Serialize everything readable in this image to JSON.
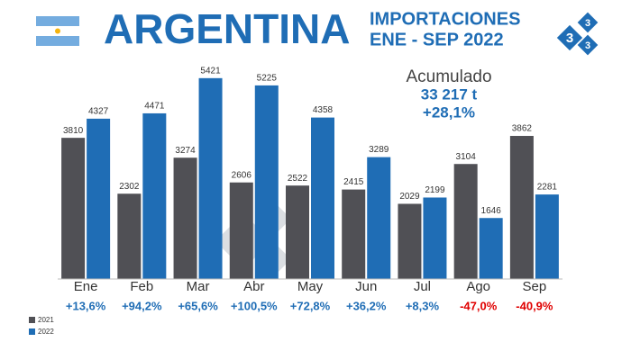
{
  "chart_data": {
    "type": "bar",
    "title": "ARGENTINA",
    "subtitle": [
      "IMPORTACIONES",
      "ENE - SEP 2022"
    ],
    "annotations": [
      "Acumulado",
      "33 217 t",
      "+28,1%"
    ],
    "logo_text": [
      "3",
      "3",
      "3"
    ],
    "categories": [
      "Ene",
      "Feb",
      "Mar",
      "Abr",
      "May",
      "Jun",
      "Jul",
      "Ago",
      "Sep"
    ],
    "series": [
      {
        "name": "2021",
        "color": "#505055",
        "values": [
          3810,
          2302,
          3274,
          2606,
          2522,
          2415,
          2029,
          3104,
          3862
        ]
      },
      {
        "name": "2022",
        "color": "#1f6db5",
        "values": [
          4327,
          4471,
          5421,
          5225,
          4358,
          3289,
          2199,
          1646,
          2281
        ]
      }
    ],
    "changes": [
      {
        "value": 13.6,
        "label": "+13,6%"
      },
      {
        "value": 94.2,
        "label": "+94,2%"
      },
      {
        "value": 65.6,
        "label": "+65,6%"
      },
      {
        "value": 100.5,
        "label": "+100,5%"
      },
      {
        "value": 72.8,
        "label": "+72,8%"
      },
      {
        "value": 36.2,
        "label": "+36,2%"
      },
      {
        "value": 8.3,
        "label": "+8,3%"
      },
      {
        "value": -47.0,
        "label": "-47,0%"
      },
      {
        "value": -40.9,
        "label": "-40,9%"
      }
    ],
    "ylim": [
      0,
      6000
    ],
    "legend": "bottom-left"
  }
}
